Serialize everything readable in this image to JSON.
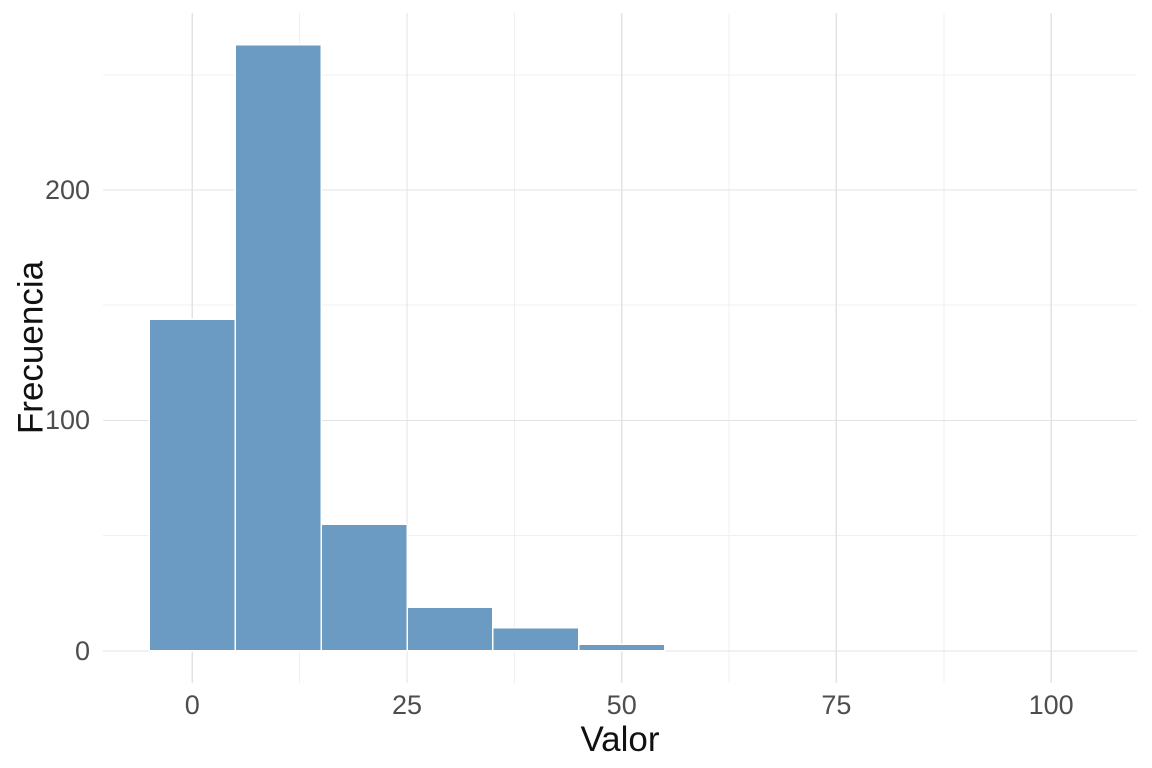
{
  "chart_data": {
    "type": "bar",
    "subtype": "histogram",
    "title": "",
    "xlabel": "Valor",
    "ylabel": "Frecuencia",
    "bins": {
      "width": 10,
      "centers": [
        0,
        10,
        20,
        30,
        40,
        50
      ]
    },
    "values": [
      144,
      263,
      55,
      19,
      10,
      3
    ],
    "x_ticks": {
      "values": [
        0,
        25,
        50,
        75,
        100
      ],
      "labels": [
        "0",
        "25",
        "50",
        "75",
        "100"
      ]
    },
    "y_ticks": {
      "values": [
        0,
        100,
        200
      ],
      "labels": [
        "0",
        "100",
        "200"
      ]
    },
    "x_minor_ticks": [
      12.5,
      37.5,
      62.5,
      87.5
    ],
    "y_minor_ticks": [
      50,
      150,
      250
    ],
    "xlim": [
      -10.4,
      110.0
    ],
    "ylim": [
      -13.9,
      276.8
    ],
    "grid": true,
    "legend": "none",
    "colors": {
      "bar_fill": "#6b9ac2",
      "bar_border": "#ffffff",
      "grid_major": "#e3e3e3",
      "grid_minor": "#f0f0f0",
      "tick_label": "#4d4d4d",
      "axis_title": "#111111",
      "background": "#ffffff"
    }
  }
}
